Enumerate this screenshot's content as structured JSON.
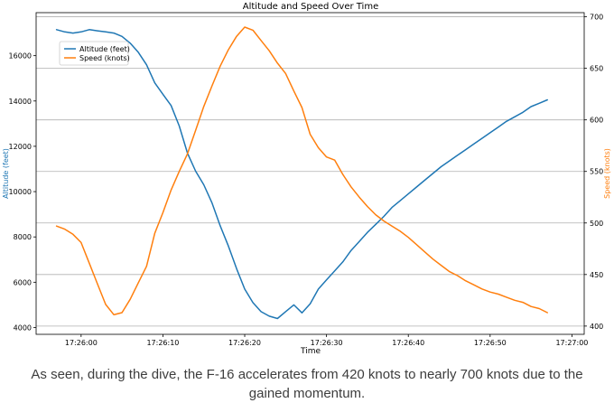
{
  "chart_data": {
    "type": "line",
    "title": "Altitude and Speed Over Time",
    "xlabel": "Time",
    "ylabel_left": "Altitude (feet)",
    "ylabel_right": "Speed (knots)",
    "x_tick_labels": [
      "17:26:00",
      "17:26:10",
      "17:26:20",
      "17:26:30",
      "17:26:40",
      "17:26:50",
      "17:27:00"
    ],
    "x_ticks_seconds": [
      0,
      10,
      20,
      30,
      40,
      50,
      60
    ],
    "xlim_seconds": [
      -5.5,
      61.5
    ],
    "left_yticks": [
      4000,
      6000,
      8000,
      10000,
      12000,
      14000,
      16000
    ],
    "left_ylim": [
      3700,
      17900
    ],
    "right_yticks": [
      400,
      450,
      500,
      550,
      600,
      650,
      700
    ],
    "right_ylim": [
      392,
      704
    ],
    "grid": "horizontal",
    "legend_position": "upper-left",
    "x_seconds": [
      -3,
      -2,
      -1,
      0,
      1,
      2,
      3,
      4,
      5,
      6,
      7,
      8,
      9,
      10,
      11,
      12,
      13,
      14,
      15,
      16,
      17,
      18,
      19,
      20,
      21,
      22,
      23,
      24,
      25,
      26,
      27,
      28,
      29,
      30,
      31,
      32,
      33,
      34,
      35,
      36,
      37,
      38,
      39,
      40,
      41,
      42,
      43,
      44,
      45,
      46,
      47,
      48,
      49,
      50,
      51,
      52,
      53,
      54,
      55,
      56,
      57
    ],
    "series": [
      {
        "name": "Altitude (feet)",
        "axis": "left",
        "color": "#1f77b4",
        "values": [
          17150,
          17050,
          17000,
          17050,
          17150,
          17100,
          17050,
          17000,
          16850,
          16550,
          16150,
          15600,
          14800,
          14300,
          13800,
          12900,
          11700,
          10900,
          10300,
          9500,
          8500,
          7600,
          6600,
          5700,
          5100,
          4700,
          4500,
          4400,
          4700,
          5000,
          4650,
          5050,
          5700,
          6100,
          6500,
          6900,
          7400,
          7800,
          8200,
          8550,
          8900,
          9300,
          9600,
          9900,
          10200,
          10500,
          10800,
          11100,
          11350,
          11600,
          11850,
          12100,
          12350,
          12600,
          12850,
          13100,
          13300,
          13500,
          13750,
          13900,
          14050
        ]
      },
      {
        "name": "Speed (knots)",
        "axis": "right",
        "color": "#ff7f0e",
        "values": [
          497,
          494,
          489,
          481,
          461,
          441,
          421,
          411,
          413,
          426,
          442,
          458,
          490,
          510,
          532,
          550,
          567,
          590,
          613,
          633,
          652,
          668,
          681,
          690,
          687,
          677,
          667,
          655,
          645,
          628,
          612,
          586,
          573,
          564,
          561,
          547,
          535,
          525,
          516,
          508,
          502,
          497,
          492,
          486,
          479,
          472,
          465,
          459,
          453,
          449,
          444,
          440,
          436,
          433,
          431,
          428,
          425,
          423,
          419,
          417,
          413
        ]
      }
    ]
  },
  "caption": "As seen, during the dive, the F-16 accelerates from 420 knots to nearly 700 knots due to the gained momentum."
}
